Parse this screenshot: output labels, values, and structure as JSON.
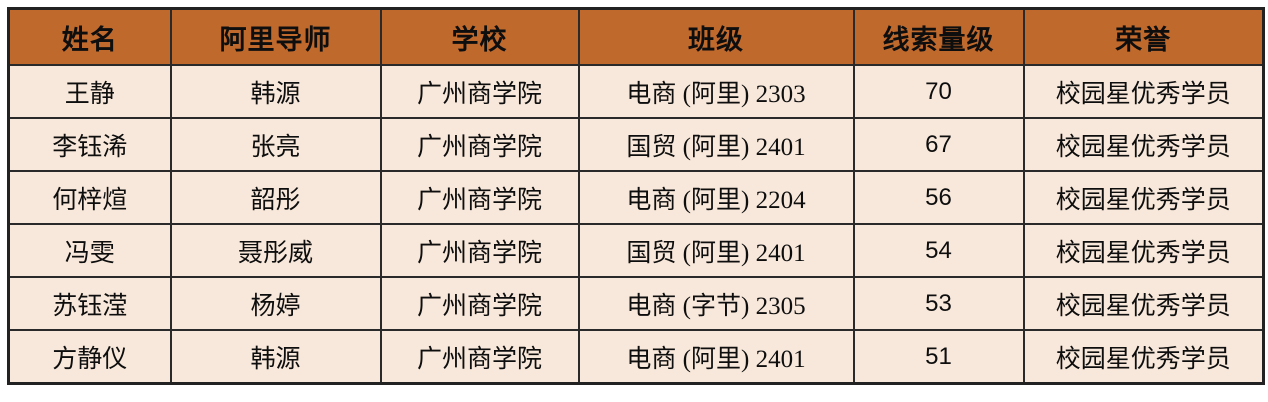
{
  "table": {
    "columns": [
      {
        "key": "name",
        "label": "姓名"
      },
      {
        "key": "mentor",
        "label": "阿里导师"
      },
      {
        "key": "school",
        "label": "学校"
      },
      {
        "key": "class",
        "label": "班级"
      },
      {
        "key": "leads",
        "label": "线索量级"
      },
      {
        "key": "honor",
        "label": "荣誉"
      }
    ],
    "rows": [
      [
        "王静",
        "韩源",
        "广州商学院",
        "电商 (阿里) 2303",
        "70",
        "校园星优秀学员"
      ],
      [
        "李钰浠",
        "张亮",
        "广州商学院",
        "国贸 (阿里) 2401",
        "67",
        "校园星优秀学员"
      ],
      [
        "何梓煊",
        "韶彤",
        "广州商学院",
        "电商 (阿里) 2204",
        "56",
        "校园星优秀学员"
      ],
      [
        "冯雯",
        "聂彤威",
        "广州商学院",
        "国贸 (阿里) 2401",
        "54",
        "校园星优秀学员"
      ],
      [
        "苏钰滢",
        "杨婷",
        "广州商学院",
        "电商 (字节) 2305",
        "53",
        "校园星优秀学员"
      ],
      [
        "方静仪",
        "韩源",
        "广州商学院",
        "电商 (阿里) 2401",
        "51",
        "校园星优秀学员"
      ]
    ]
  },
  "colors": {
    "header_bg": "#c0692d",
    "body_bg": "#f8e8db",
    "border": "#2a2a2a",
    "text": "#0e0e0e"
  }
}
